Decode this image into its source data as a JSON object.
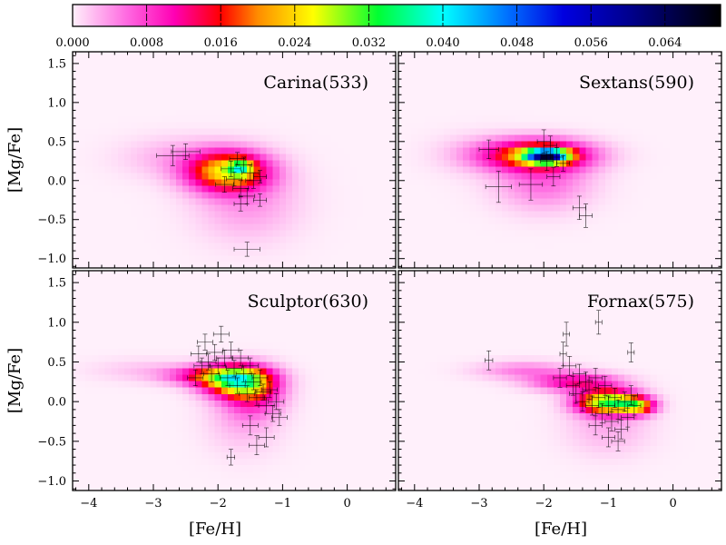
{
  "chart_data": {
    "type": "heatmap",
    "colorbar": {
      "min": 0.0,
      "max": 0.07,
      "ticks": [
        "0.000",
        "0.008",
        "0.016",
        "0.024",
        "0.032",
        "0.040",
        "0.048",
        "0.056",
        "0.064"
      ],
      "tick_values": [
        0.0,
        0.008,
        0.016,
        0.024,
        0.032,
        0.04,
        0.048,
        0.056,
        0.064
      ],
      "colormap": [
        {
          "v": 0.0,
          "c": "#fff0fb"
        },
        {
          "v": 0.006,
          "c": "#ff66e0"
        },
        {
          "v": 0.011,
          "c": "#ff00b4"
        },
        {
          "v": 0.016,
          "c": "#ff0000"
        },
        {
          "v": 0.02,
          "c": "#ff8c00"
        },
        {
          "v": 0.026,
          "c": "#ffff00"
        },
        {
          "v": 0.033,
          "c": "#00ff33"
        },
        {
          "v": 0.04,
          "c": "#00ffff"
        },
        {
          "v": 0.047,
          "c": "#0070ff"
        },
        {
          "v": 0.053,
          "c": "#0000e0"
        },
        {
          "v": 0.06,
          "c": "#000090"
        },
        {
          "v": 0.07,
          "c": "#000000"
        }
      ]
    },
    "xlabel": "[Fe/H]",
    "ylabel": "[Mg/Fe]",
    "xlim": [
      -4.25,
      0.75
    ],
    "ylim": [
      -1.12,
      1.65
    ],
    "xticks": [
      -4,
      -3,
      -2,
      -1,
      0
    ],
    "yticks": [
      -1.0,
      -0.5,
      0.0,
      0.5,
      1.0,
      1.5
    ],
    "xtick_labels": [
      "−4",
      "−3",
      "−2",
      "−1",
      "0"
    ],
    "ytick_labels": [
      "−1.0",
      "−0.5",
      "0.0",
      "0.5",
      "1.0",
      "1.5"
    ],
    "panels": [
      {
        "name": "Carina",
        "label": "Carina(533)",
        "density_components": [
          {
            "fe": -1.85,
            "mg": 0.12,
            "sfe": 0.42,
            "smg": 0.17,
            "amp": 0.024
          },
          {
            "fe": -1.65,
            "mg": 0.17,
            "sfe": 0.12,
            "smg": 0.07,
            "amp": 0.018
          },
          {
            "fe": -1.55,
            "mg": -0.25,
            "sfe": 0.55,
            "smg": 0.35,
            "amp": 0.004
          },
          {
            "fe": -2.6,
            "mg": 0.3,
            "sfe": 0.6,
            "smg": 0.18,
            "amp": 0.003
          }
        ],
        "stars": [
          {
            "fe": -2.7,
            "mg": 0.32,
            "efe": 0.25,
            "emg": 0.13
          },
          {
            "fe": -2.5,
            "mg": 0.37,
            "efe": 0.22,
            "emg": 0.1
          },
          {
            "fe": -1.8,
            "mg": 0.15,
            "efe": 0.15,
            "emg": 0.1
          },
          {
            "fe": -1.7,
            "mg": 0.28,
            "efe": 0.12,
            "emg": 0.08
          },
          {
            "fe": -1.6,
            "mg": 0.2,
            "efe": 0.12,
            "emg": 0.1
          },
          {
            "fe": -1.5,
            "mg": 0.1,
            "efe": 0.13,
            "emg": 0.1
          },
          {
            "fe": -1.45,
            "mg": 0.0,
            "efe": 0.12,
            "emg": 0.1
          },
          {
            "fe": -1.9,
            "mg": -0.05,
            "efe": 0.14,
            "emg": 0.1
          },
          {
            "fe": -1.75,
            "mg": 0.02,
            "efe": 0.12,
            "emg": 0.09
          },
          {
            "fe": -1.65,
            "mg": -0.1,
            "efe": 0.12,
            "emg": 0.1
          },
          {
            "fe": -1.55,
            "mg": -0.2,
            "efe": 0.12,
            "emg": 0.1
          },
          {
            "fe": -1.35,
            "mg": -0.25,
            "efe": 0.1,
            "emg": 0.08
          },
          {
            "fe": -1.65,
            "mg": -0.3,
            "efe": 0.1,
            "emg": 0.09
          },
          {
            "fe": -1.35,
            "mg": 0.05,
            "efe": 0.1,
            "emg": 0.08
          },
          {
            "fe": -1.55,
            "mg": -0.88,
            "efe": 0.2,
            "emg": 0.09
          }
        ]
      },
      {
        "name": "Sextans",
        "label": "Sextans(590)",
        "density_components": [
          {
            "fe": -2.1,
            "mg": 0.33,
            "sfe": 0.55,
            "smg": 0.13,
            "amp": 0.022
          },
          {
            "fe": -1.95,
            "mg": 0.32,
            "sfe": 0.22,
            "smg": 0.06,
            "amp": 0.045
          },
          {
            "fe": -2.0,
            "mg": 0.0,
            "sfe": 0.5,
            "smg": 0.25,
            "amp": 0.006
          },
          {
            "fe": -3.0,
            "mg": 0.35,
            "sfe": 0.5,
            "smg": 0.18,
            "amp": 0.002
          }
        ],
        "stars": [
          {
            "fe": -2.85,
            "mg": 0.4,
            "efe": 0.15,
            "emg": 0.12
          },
          {
            "fe": -2.7,
            "mg": -0.08,
            "efe": 0.2,
            "emg": 0.2
          },
          {
            "fe": -2.2,
            "mg": -0.05,
            "efe": 0.18,
            "emg": 0.2
          },
          {
            "fe": -2.0,
            "mg": 0.5,
            "efe": 0.1,
            "emg": 0.15
          },
          {
            "fe": -1.9,
            "mg": 0.45,
            "efe": 0.1,
            "emg": 0.12
          },
          {
            "fe": -1.95,
            "mg": 0.25,
            "efe": 0.1,
            "emg": 0.12
          },
          {
            "fe": -1.8,
            "mg": 0.3,
            "efe": 0.1,
            "emg": 0.12
          },
          {
            "fe": -1.7,
            "mg": 0.22,
            "efe": 0.1,
            "emg": 0.1
          },
          {
            "fe": -1.85,
            "mg": 0.05,
            "efe": 0.1,
            "emg": 0.12
          },
          {
            "fe": -1.45,
            "mg": -0.35,
            "efe": 0.1,
            "emg": 0.15
          },
          {
            "fe": -1.35,
            "mg": -0.45,
            "efe": 0.1,
            "emg": 0.15
          }
        ]
      },
      {
        "name": "Sculptor",
        "label": "Sculptor(630)",
        "density_components": [
          {
            "fe": -1.7,
            "mg": 0.27,
            "sfe": 0.35,
            "smg": 0.13,
            "amp": 0.03
          },
          {
            "fe": -2.1,
            "mg": 0.33,
            "sfe": 0.45,
            "smg": 0.08,
            "amp": 0.013
          },
          {
            "fe": -1.45,
            "mg": 0.1,
            "sfe": 0.3,
            "smg": 0.18,
            "amp": 0.01
          },
          {
            "fe": -1.6,
            "mg": -0.2,
            "sfe": 0.4,
            "smg": 0.3,
            "amp": 0.003
          },
          {
            "fe": -3.1,
            "mg": 0.4,
            "sfe": 0.6,
            "smg": 0.1,
            "amp": 0.002
          }
        ],
        "stars": [
          {
            "fe": -2.35,
            "mg": 0.3,
            "efe": 0.12,
            "emg": 0.1
          },
          {
            "fe": -2.3,
            "mg": 0.6,
            "efe": 0.12,
            "emg": 0.1
          },
          {
            "fe": -2.25,
            "mg": 0.45,
            "efe": 0.12,
            "emg": 0.1
          },
          {
            "fe": -2.2,
            "mg": 0.75,
            "efe": 0.12,
            "emg": 0.1
          },
          {
            "fe": -2.15,
            "mg": 0.5,
            "efe": 0.12,
            "emg": 0.1
          },
          {
            "fe": -2.1,
            "mg": 0.35,
            "efe": 0.12,
            "emg": 0.1
          },
          {
            "fe": -2.05,
            "mg": 0.62,
            "efe": 0.12,
            "emg": 0.1
          },
          {
            "fe": -2.0,
            "mg": 0.45,
            "efe": 0.12,
            "emg": 0.1
          },
          {
            "fe": -1.95,
            "mg": 0.85,
            "efe": 0.12,
            "emg": 0.1
          },
          {
            "fe": -1.9,
            "mg": 0.55,
            "efe": 0.12,
            "emg": 0.1
          },
          {
            "fe": -1.85,
            "mg": 0.3,
            "efe": 0.12,
            "emg": 0.1
          },
          {
            "fe": -1.8,
            "mg": 0.65,
            "efe": 0.12,
            "emg": 0.1
          },
          {
            "fe": -1.75,
            "mg": 0.42,
            "efe": 0.12,
            "emg": 0.1
          },
          {
            "fe": -1.7,
            "mg": 0.2,
            "efe": 0.12,
            "emg": 0.1
          },
          {
            "fe": -1.65,
            "mg": 0.55,
            "efe": 0.12,
            "emg": 0.1
          },
          {
            "fe": -1.6,
            "mg": 0.35,
            "efe": 0.12,
            "emg": 0.1
          },
          {
            "fe": -1.55,
            "mg": 0.1,
            "efe": 0.12,
            "emg": 0.1
          },
          {
            "fe": -1.5,
            "mg": 0.45,
            "efe": 0.12,
            "emg": 0.1
          },
          {
            "fe": -1.45,
            "mg": 0.25,
            "efe": 0.12,
            "emg": 0.1
          },
          {
            "fe": -1.4,
            "mg": 0.05,
            "efe": 0.12,
            "emg": 0.1
          },
          {
            "fe": -1.35,
            "mg": 0.3,
            "efe": 0.12,
            "emg": 0.1
          },
          {
            "fe": -1.3,
            "mg": 0.12,
            "efe": 0.12,
            "emg": 0.1
          },
          {
            "fe": -1.25,
            "mg": -0.05,
            "efe": 0.12,
            "emg": 0.1
          },
          {
            "fe": -1.2,
            "mg": 0.15,
            "efe": 0.12,
            "emg": 0.1
          },
          {
            "fe": -1.15,
            "mg": -0.15,
            "efe": 0.12,
            "emg": 0.1
          },
          {
            "fe": -1.1,
            "mg": 0.0,
            "efe": 0.12,
            "emg": 0.1
          },
          {
            "fe": -1.05,
            "mg": -0.2,
            "efe": 0.12,
            "emg": 0.1
          },
          {
            "fe": -1.5,
            "mg": -0.3,
            "efe": 0.12,
            "emg": 0.12
          },
          {
            "fe": -1.4,
            "mg": -0.55,
            "efe": 0.12,
            "emg": 0.12
          },
          {
            "fe": -1.25,
            "mg": -0.45,
            "efe": 0.12,
            "emg": 0.12
          },
          {
            "fe": -1.8,
            "mg": -0.7,
            "efe": 0.06,
            "emg": 0.1
          }
        ]
      },
      {
        "name": "Fornax",
        "label": "Fornax(575)",
        "density_components": [
          {
            "fe": -1.0,
            "mg": 0.0,
            "sfe": 0.32,
            "smg": 0.1,
            "amp": 0.032
          },
          {
            "fe": -0.55,
            "mg": -0.05,
            "sfe": 0.18,
            "smg": 0.07,
            "amp": 0.02
          },
          {
            "fe": -1.5,
            "mg": 0.25,
            "sfe": 0.45,
            "smg": 0.08,
            "amp": 0.012
          },
          {
            "fe": -2.3,
            "mg": 0.4,
            "sfe": 0.5,
            "smg": 0.08,
            "amp": 0.005
          },
          {
            "fe": -1.0,
            "mg": -0.3,
            "sfe": 0.45,
            "smg": 0.25,
            "amp": 0.003
          }
        ],
        "stars": [
          {
            "fe": -2.85,
            "mg": 0.52,
            "efe": 0.06,
            "emg": 0.12
          },
          {
            "fe": -1.7,
            "mg": 0.6,
            "efe": 0.05,
            "emg": 0.15
          },
          {
            "fe": -1.65,
            "mg": 0.85,
            "efe": 0.05,
            "emg": 0.15
          },
          {
            "fe": -1.15,
            "mg": 1.0,
            "efe": 0.05,
            "emg": 0.15
          },
          {
            "fe": -0.65,
            "mg": 0.62,
            "efe": 0.05,
            "emg": 0.12
          },
          {
            "fe": -1.75,
            "mg": 0.3,
            "efe": 0.1,
            "emg": 0.12
          },
          {
            "fe": -1.6,
            "mg": 0.45,
            "efe": 0.1,
            "emg": 0.12
          },
          {
            "fe": -1.55,
            "mg": 0.2,
            "efe": 0.1,
            "emg": 0.12
          },
          {
            "fe": -1.5,
            "mg": 0.1,
            "efe": 0.1,
            "emg": 0.12
          },
          {
            "fe": -1.45,
            "mg": 0.35,
            "efe": 0.1,
            "emg": 0.12
          },
          {
            "fe": -1.4,
            "mg": 0.0,
            "efe": 0.1,
            "emg": 0.12
          },
          {
            "fe": -1.35,
            "mg": 0.25,
            "efe": 0.1,
            "emg": 0.12
          },
          {
            "fe": -1.3,
            "mg": 0.15,
            "efe": 0.1,
            "emg": 0.12
          },
          {
            "fe": -1.25,
            "mg": -0.05,
            "efe": 0.1,
            "emg": 0.12
          },
          {
            "fe": -1.2,
            "mg": 0.3,
            "efe": 0.1,
            "emg": 0.12
          },
          {
            "fe": -1.15,
            "mg": 0.05,
            "efe": 0.1,
            "emg": 0.12
          },
          {
            "fe": -1.1,
            "mg": -0.15,
            "efe": 0.1,
            "emg": 0.12
          },
          {
            "fe": -1.05,
            "mg": 0.2,
            "efe": 0.1,
            "emg": 0.12
          },
          {
            "fe": -1.0,
            "mg": -0.05,
            "efe": 0.1,
            "emg": 0.12
          },
          {
            "fe": -0.95,
            "mg": -0.25,
            "efe": 0.1,
            "emg": 0.12
          },
          {
            "fe": -0.9,
            "mg": 0.05,
            "efe": 0.1,
            "emg": 0.12
          },
          {
            "fe": -0.85,
            "mg": -0.1,
            "efe": 0.1,
            "emg": 0.12
          },
          {
            "fe": -0.8,
            "mg": -0.35,
            "efe": 0.1,
            "emg": 0.12
          },
          {
            "fe": -0.75,
            "mg": 0.0,
            "efe": 0.1,
            "emg": 0.12
          },
          {
            "fe": -0.7,
            "mg": -0.2,
            "efe": 0.1,
            "emg": 0.12
          },
          {
            "fe": -0.65,
            "mg": 0.08,
            "efe": 0.1,
            "emg": 0.12
          },
          {
            "fe": -0.6,
            "mg": -0.05,
            "efe": 0.1,
            "emg": 0.12
          },
          {
            "fe": -1.2,
            "mg": -0.3,
            "efe": 0.1,
            "emg": 0.12
          },
          {
            "fe": -1.0,
            "mg": -0.45,
            "efe": 0.1,
            "emg": 0.12
          },
          {
            "fe": -0.85,
            "mg": -0.5,
            "efe": 0.1,
            "emg": 0.12
          }
        ]
      }
    ]
  }
}
